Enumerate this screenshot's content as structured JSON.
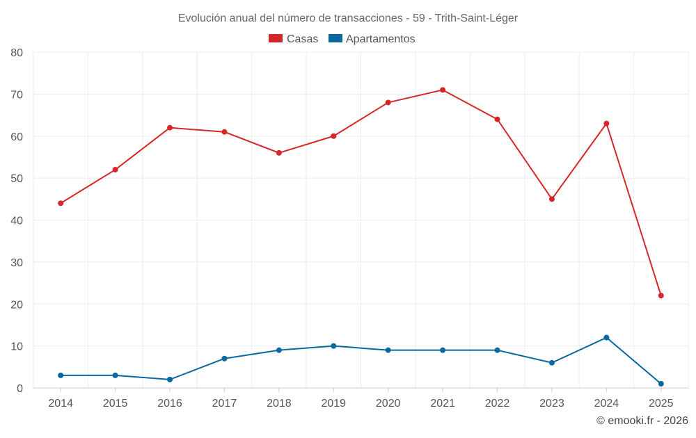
{
  "chart_data": {
    "type": "line",
    "title": "Evolución anual del número de transacciones - 59 - Trith-Saint-Léger",
    "categories": [
      "2014",
      "2015",
      "2016",
      "2017",
      "2018",
      "2019",
      "2020",
      "2021",
      "2022",
      "2023",
      "2024",
      "2025"
    ],
    "series": [
      {
        "name": "Casas",
        "color": "#d62728",
        "values": [
          44,
          52,
          62,
          61,
          56,
          60,
          68,
          71,
          64,
          45,
          63,
          22
        ]
      },
      {
        "name": "Apartamentos",
        "color": "#0868a0",
        "values": [
          3,
          3,
          2,
          7,
          9,
          10,
          9,
          9,
          9,
          6,
          12,
          1
        ]
      }
    ],
    "ylim": [
      0,
      80
    ],
    "yticks": [
      0,
      10,
      20,
      30,
      40,
      50,
      60,
      70,
      80
    ],
    "xlabel": "",
    "ylabel": "",
    "grid": true,
    "legend": "top-center"
  },
  "footer": {
    "credit": "© emooki.fr - 2026"
  }
}
